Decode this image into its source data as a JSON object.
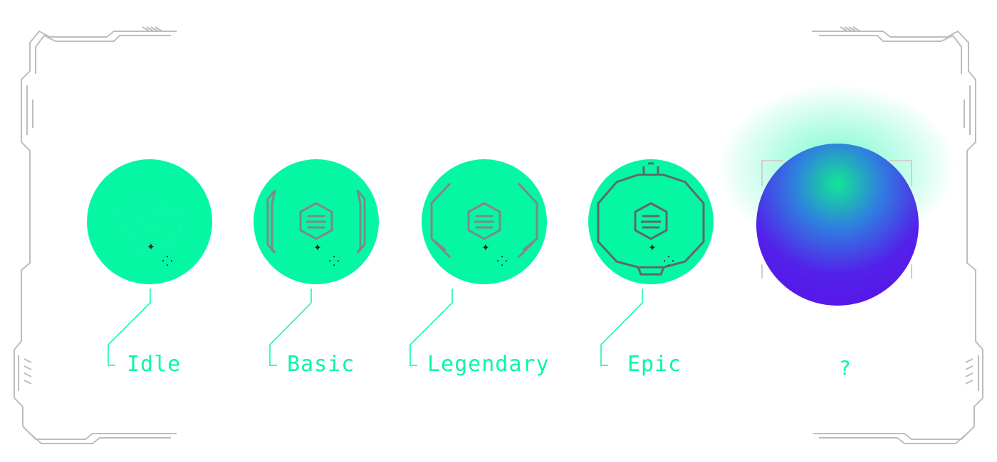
{
  "colors": {
    "accent": "#05f7a4",
    "label": "#05f7a4",
    "mystery_top": "#12e594",
    "mystery_bottom": "#5b10e6",
    "frame": "#b8b8b8"
  },
  "tiers": [
    {
      "label": "Idle"
    },
    {
      "label": "Basic"
    },
    {
      "label": "Legendary"
    },
    {
      "label": "Epic"
    }
  ],
  "mystery": {
    "label": "?"
  },
  "icons": {
    "sparkle": "sparkle-icon",
    "dots": "dots-icon",
    "emblem": "hexagon-emblem-icon"
  }
}
